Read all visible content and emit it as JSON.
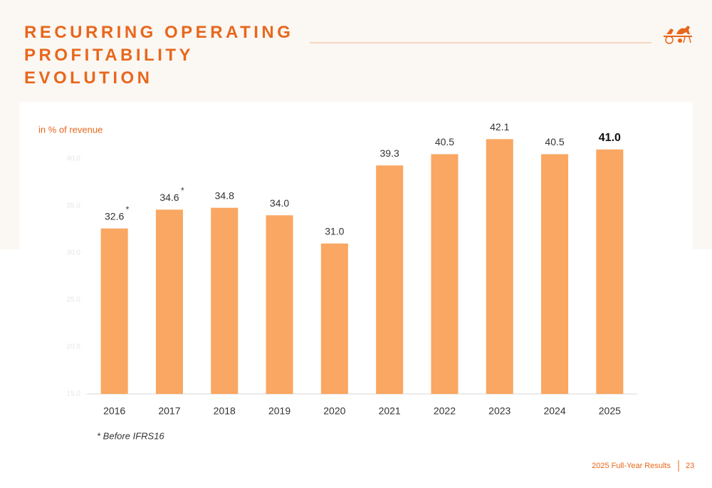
{
  "header": {
    "title": "RECURRING OPERATING PROFITABILITY EVOLUTION"
  },
  "chart_data": {
    "type": "bar",
    "unit_label": "in % of revenue",
    "categories": [
      "2016",
      "2017",
      "2018",
      "2019",
      "2020",
      "2021",
      "2022",
      "2023",
      "2024",
      "2025"
    ],
    "values": [
      32.6,
      34.6,
      34.8,
      34.0,
      31.0,
      39.3,
      40.5,
      42.1,
      40.5,
      41.0
    ],
    "value_labels": [
      "32.6",
      "34.6",
      "34.8",
      "34.0",
      "31.0",
      "39.3",
      "40.5",
      "42.1",
      "40.5",
      "41.0"
    ],
    "value_label_bold": [
      false,
      false,
      false,
      false,
      false,
      false,
      false,
      false,
      false,
      true
    ],
    "value_label_marks": [
      "*",
      "*",
      null,
      null,
      null,
      null,
      null,
      null,
      null,
      null
    ],
    "color": "#f9a762",
    "ylim": [
      15,
      42.5
    ],
    "yticks": [
      {
        "value": 15,
        "label": "15.0"
      },
      {
        "value": 20,
        "label": "20.0"
      },
      {
        "value": 25,
        "label": "25.0"
      },
      {
        "value": 30,
        "label": "30.0"
      },
      {
        "value": 35,
        "label": "35.0"
      },
      {
        "value": 40,
        "label": "40.0"
      }
    ],
    "grid": false,
    "footnote": "* Before IFRS16"
  },
  "footer": {
    "text": "2025 Full-Year Results",
    "page": 23
  }
}
